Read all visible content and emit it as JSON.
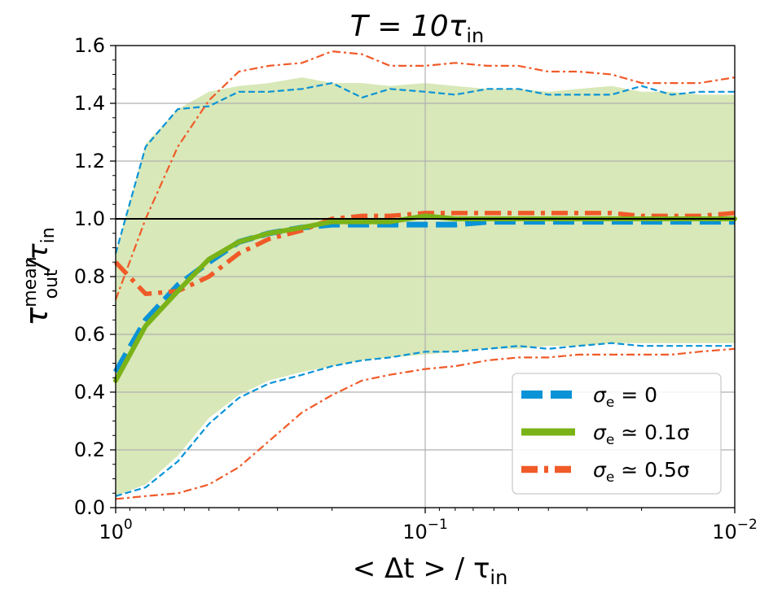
{
  "chart_data": {
    "type": "line",
    "title": {
      "main": "T = 10τ",
      "sub": "in"
    },
    "xlabel": {
      "prefix": "< Δt > / τ",
      "sub": "in"
    },
    "ylabel": {
      "prefix": "τ",
      "sup": "mean",
      "sub": "out",
      "slash": "/τ",
      "sub2": "in"
    },
    "x_scale": "log",
    "x_reversed": true,
    "xlim": [
      1,
      0.01
    ],
    "ylim": [
      0,
      1.6
    ],
    "x_ticks": [
      {
        "value": 1,
        "base": "10",
        "exp": "0"
      },
      {
        "value": 0.1,
        "base": "10",
        "exp": "−1"
      },
      {
        "value": 0.01,
        "base": "10",
        "exp": "−2"
      }
    ],
    "y_ticks": [
      {
        "value": 0.0,
        "label": "0.0"
      },
      {
        "value": 0.2,
        "label": "0.2"
      },
      {
        "value": 0.4,
        "label": "0.4"
      },
      {
        "value": 0.6,
        "label": "0.6"
      },
      {
        "value": 0.8,
        "label": "0.8"
      },
      {
        "value": 1.0,
        "label": "1.0"
      },
      {
        "value": 1.2,
        "label": "1.2"
      },
      {
        "value": 1.4,
        "label": "1.4"
      },
      {
        "value": 1.6,
        "label": "1.6"
      }
    ],
    "grid": true,
    "reference_line": 1.0,
    "x": [
      1.0,
      0.8,
      0.63,
      0.5,
      0.4,
      0.32,
      0.25,
      0.2,
      0.16,
      0.13,
      0.1,
      0.08,
      0.063,
      0.05,
      0.04,
      0.032,
      0.025,
      0.02,
      0.016,
      0.013,
      0.01
    ],
    "band": {
      "name": "σe ≃ 0.1σ spread",
      "color": "#d8e8b8",
      "upper": [
        0.88,
        1.26,
        1.38,
        1.44,
        1.46,
        1.47,
        1.49,
        1.47,
        1.47,
        1.46,
        1.47,
        1.46,
        1.45,
        1.45,
        1.44,
        1.45,
        1.46,
        1.44,
        1.44,
        1.43,
        1.43
      ],
      "lower": [
        0.04,
        0.08,
        0.18,
        0.31,
        0.39,
        0.44,
        0.47,
        0.49,
        0.51,
        0.52,
        0.53,
        0.54,
        0.55,
        0.55,
        0.56,
        0.56,
        0.57,
        0.57,
        0.57,
        0.57,
        0.57
      ]
    },
    "series": [
      {
        "name": "σe = 0",
        "legend": {
          "base": "σ",
          "sub": "e",
          "rest": " = 0"
        },
        "color": "#0a93d6",
        "style": "dashed-thick",
        "values": [
          0.47,
          0.65,
          0.77,
          0.85,
          0.92,
          0.95,
          0.97,
          0.98,
          0.98,
          0.98,
          0.98,
          0.98,
          0.99,
          0.99,
          0.99,
          0.99,
          0.99,
          0.99,
          0.99,
          0.99,
          0.99
        ]
      },
      {
        "name": "σe ≃ 0.1σ",
        "legend": {
          "base": "σ",
          "sub": "e",
          "rest": " ≃ 0.1σ"
        },
        "color": "#7ab317",
        "style": "solid",
        "values": [
          0.44,
          0.63,
          0.75,
          0.86,
          0.92,
          0.95,
          0.97,
          0.99,
          0.99,
          0.99,
          1.01,
          1.0,
          1.0,
          1.0,
          1.0,
          1.0,
          1.0,
          1.0,
          1.0,
          1.0,
          1.0
        ]
      },
      {
        "name": "σe ≃ 0.5σ",
        "legend": {
          "base": "σ",
          "sub": "e",
          "rest": " ≃ 0.5σ"
        },
        "color": "#f05a28",
        "style": "dashdot-thick",
        "values": [
          0.85,
          0.74,
          0.75,
          0.8,
          0.88,
          0.93,
          0.96,
          1.0,
          1.01,
          1.01,
          1.02,
          1.02,
          1.02,
          1.02,
          1.02,
          1.02,
          1.02,
          1.01,
          1.01,
          1.01,
          1.02
        ]
      },
      {
        "name": "σe = 0 upper",
        "color": "#0a93d6",
        "style": "dashed-thin",
        "values": [
          0.88,
          1.25,
          1.38,
          1.39,
          1.44,
          1.44,
          1.45,
          1.47,
          1.42,
          1.45,
          1.44,
          1.43,
          1.45,
          1.45,
          1.43,
          1.43,
          1.43,
          1.46,
          1.43,
          1.44,
          1.44
        ]
      },
      {
        "name": "σe = 0 lower",
        "color": "#0a93d6",
        "style": "dashed-thin",
        "values": [
          0.04,
          0.07,
          0.16,
          0.29,
          0.38,
          0.43,
          0.46,
          0.49,
          0.51,
          0.52,
          0.54,
          0.54,
          0.55,
          0.56,
          0.55,
          0.56,
          0.57,
          0.56,
          0.56,
          0.56,
          0.56
        ]
      },
      {
        "name": "σe ≃ 0.5σ upper",
        "color": "#f05a28",
        "style": "dashdot-thin",
        "values": [
          0.72,
          1.0,
          1.25,
          1.41,
          1.51,
          1.53,
          1.54,
          1.58,
          1.57,
          1.53,
          1.53,
          1.54,
          1.53,
          1.53,
          1.51,
          1.51,
          1.5,
          1.47,
          1.47,
          1.47,
          1.49
        ]
      },
      {
        "name": "σe ≃ 0.5σ lower",
        "color": "#f05a28",
        "style": "dashdot-thin",
        "values": [
          0.03,
          0.04,
          0.05,
          0.08,
          0.14,
          0.23,
          0.33,
          0.39,
          0.44,
          0.46,
          0.48,
          0.49,
          0.51,
          0.52,
          0.52,
          0.53,
          0.53,
          0.53,
          0.53,
          0.54,
          0.55
        ]
      }
    ],
    "legend_position": "lower-right"
  }
}
